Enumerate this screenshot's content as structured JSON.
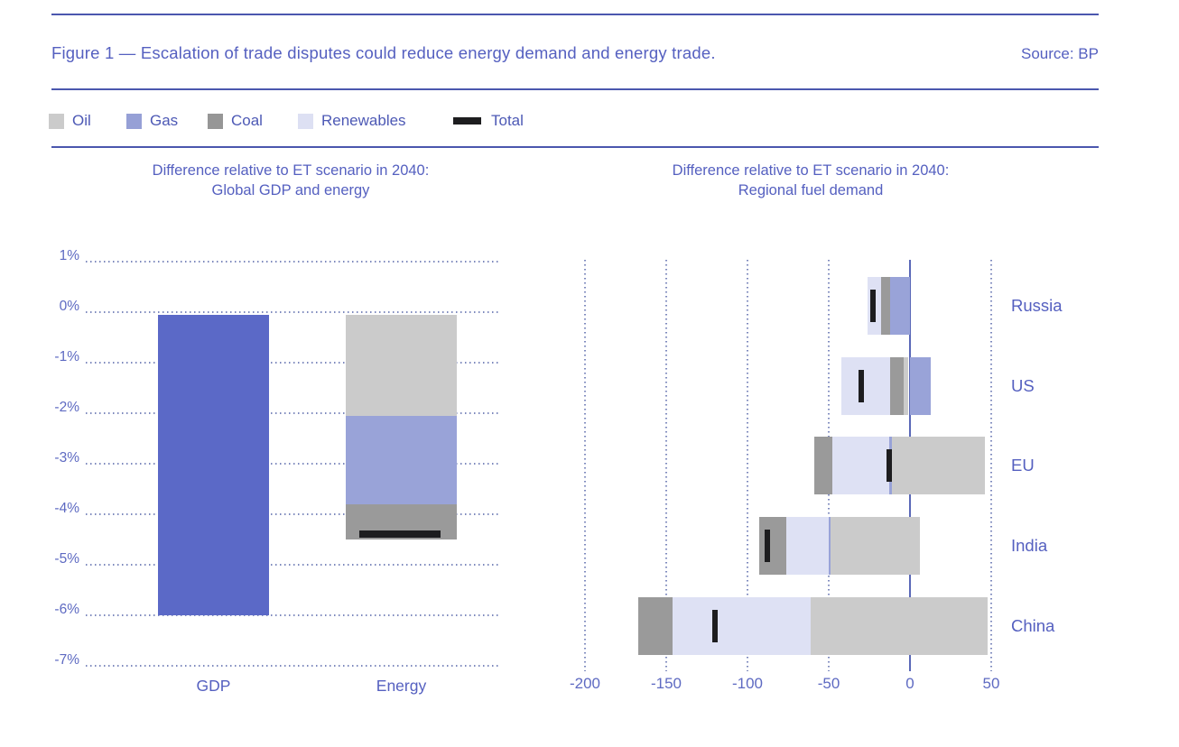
{
  "figure": {
    "title": "Figure 1 — Escalation of trade disputes could reduce energy demand and energy trade.",
    "source": "Source: BP"
  },
  "legend": {
    "items": [
      {
        "label": "Oil",
        "color": "#cbcbcb",
        "shape": "square"
      },
      {
        "label": "Gas",
        "color": "#96a0d6",
        "shape": "square"
      },
      {
        "label": "Coal",
        "color": "#969696",
        "shape": "square"
      },
      {
        "label": "Renewables",
        "color": "#dde0f3",
        "shape": "square"
      },
      {
        "label": "Total",
        "color": "#1d1d1f",
        "shape": "dash"
      }
    ]
  },
  "colors": {
    "oil": "#cbcbcb",
    "gas": "#99a3d8",
    "coal": "#9a9a9a",
    "renewables": "#dee1f4",
    "gdp": "#5b69c7",
    "total": "#1d1d1f",
    "text_blue": "#5560c0",
    "grid_dot": "#7d89bd",
    "zero_line": "#5a68b8"
  },
  "chart_data": [
    {
      "type": "bar",
      "orientation": "vertical",
      "title": [
        "Difference relative to ET scenario in 2040:",
        "Global GDP and energy"
      ],
      "unit": "%",
      "ylim": [
        -7,
        1
      ],
      "yticks": [
        1,
        0,
        -1,
        -2,
        -3,
        -4,
        -5,
        -6,
        -7
      ],
      "ytick_labels": [
        "1%",
        "0%",
        "-1%",
        "-2%",
        "-3%",
        "-4%",
        "-5%",
        "-6%",
        "-7%"
      ],
      "grid": "horizontal-dotted",
      "categories": [
        "GDP",
        "Energy"
      ],
      "bars": [
        {
          "category": "GDP",
          "segments": [
            {
              "name": "gdp",
              "from": 0,
              "to": -6.0
            }
          ],
          "total": null
        },
        {
          "category": "Energy",
          "segments": [
            {
              "name": "oil",
              "from": 0,
              "to": -2.05
            },
            {
              "name": "gas",
              "from": -2.05,
              "to": -3.8
            },
            {
              "name": "coal",
              "from": -3.8,
              "to": -4.5
            }
          ],
          "total": -4.4
        }
      ]
    },
    {
      "type": "bar",
      "orientation": "horizontal",
      "title": [
        "Difference relative to ET scenario in 2040:",
        "Regional fuel demand"
      ],
      "xlim": [
        -210,
        55
      ],
      "xticks": [
        -200,
        -150,
        -100,
        -50,
        0,
        50
      ],
      "xtick_labels": [
        "-200",
        "-150",
        "-100",
        "-50",
        "0",
        "50"
      ],
      "grid": "vertical-dotted",
      "zero_line": true,
      "categories": [
        "Russia",
        "US",
        "EU",
        "India",
        "China"
      ],
      "rows": [
        {
          "region": "Russia",
          "segments": [
            {
              "fuel": "renewables",
              "from": -26,
              "to": -18
            },
            {
              "fuel": "coal",
              "from": -18,
              "to": -12
            },
            {
              "fuel": "gas",
              "from": -12,
              "to": 0
            }
          ],
          "total": -23
        },
        {
          "region": "US",
          "segments": [
            {
              "fuel": "renewables",
              "from": -42,
              "to": -12
            },
            {
              "fuel": "coal",
              "from": -12,
              "to": -4
            },
            {
              "fuel": "oil",
              "from": -4,
              "to": -1
            },
            {
              "fuel": "gas",
              "from": 0,
              "to": 13
            }
          ],
          "total": -30
        },
        {
          "region": "EU",
          "segments": [
            {
              "fuel": "coal",
              "from": -59,
              "to": -48
            },
            {
              "fuel": "renewables",
              "from": -48,
              "to": -13
            },
            {
              "fuel": "gas",
              "from": -13,
              "to": -11
            },
            {
              "fuel": "oil",
              "from": -11,
              "to": 46
            }
          ],
          "total": -13
        },
        {
          "region": "India",
          "segments": [
            {
              "fuel": "coal",
              "from": -93,
              "to": -76
            },
            {
              "fuel": "renewables",
              "from": -76,
              "to": -50
            },
            {
              "fuel": "gas",
              "from": -50,
              "to": -49
            },
            {
              "fuel": "oil",
              "from": -49,
              "to": 6
            }
          ],
          "total": -88
        },
        {
          "region": "China",
          "segments": [
            {
              "fuel": "coal",
              "from": -167,
              "to": -146
            },
            {
              "fuel": "renewables",
              "from": -146,
              "to": -61
            },
            {
              "fuel": "oil",
              "from": -61,
              "to": 48
            }
          ],
          "total": -120
        }
      ]
    }
  ]
}
